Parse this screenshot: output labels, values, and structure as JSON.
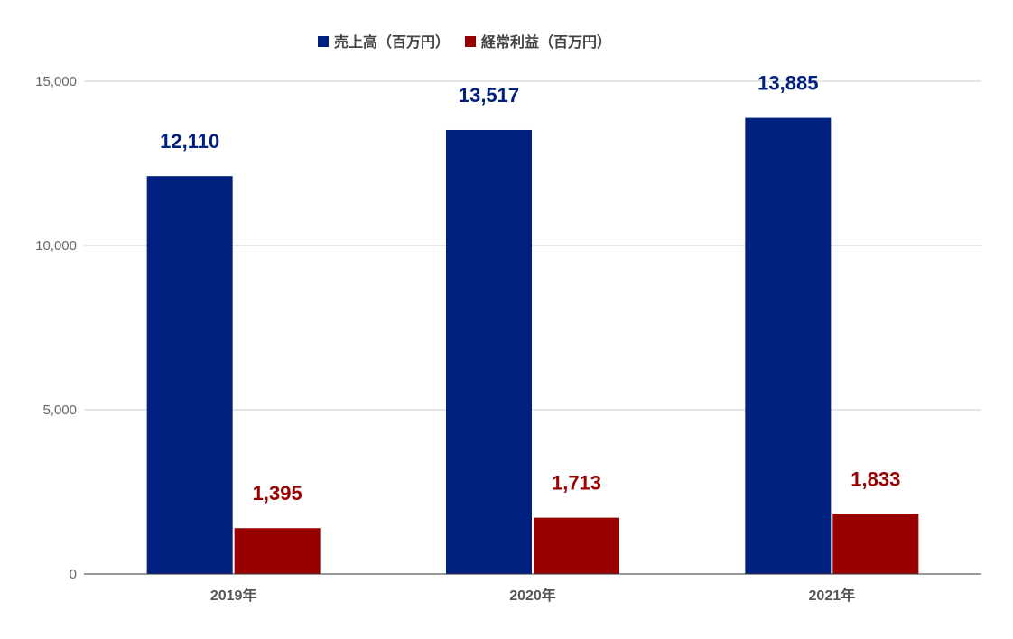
{
  "chart_data": {
    "type": "bar",
    "categories": [
      "2019年",
      "2020年",
      "2021年"
    ],
    "series": [
      {
        "name": "売上高（百万円）",
        "values": [
          12110,
          13517,
          13885
        ],
        "color": "#002080",
        "labels": [
          "12,110",
          "13,517",
          "13,885"
        ]
      },
      {
        "name": "経常利益（百万円）",
        "values": [
          1395,
          1713,
          1833
        ],
        "color": "#990000",
        "labels": [
          "1,395",
          "1,713",
          "1,833"
        ]
      }
    ],
    "title": "",
    "xlabel": "",
    "ylabel": "",
    "ylim": [
      0,
      15000
    ],
    "yticks": [
      0,
      5000,
      10000,
      15000
    ],
    "ytick_labels": [
      "0",
      "5,000",
      "10,000",
      "15,000"
    ],
    "grid": true,
    "legend_position": "top"
  }
}
